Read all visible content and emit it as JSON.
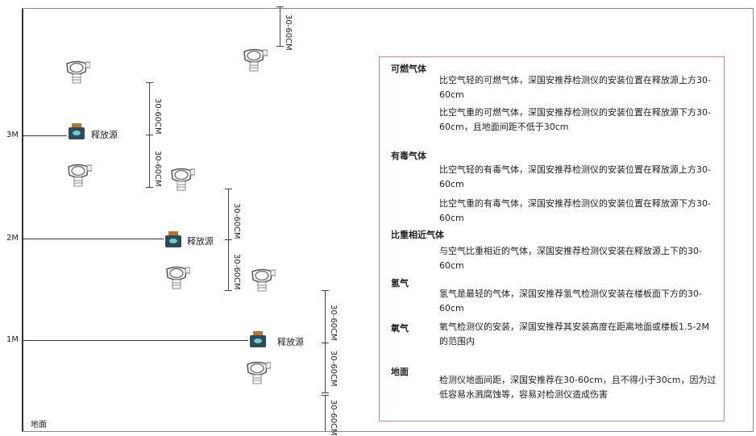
{
  "levels": [
    "3M",
    "2M",
    "1M"
  ],
  "ground_label": "地面",
  "source_label": "释放源",
  "dimension_label": "30-60CM",
  "panel": {
    "combustible": {
      "title": "可燃气体",
      "lighter": "比空气轻的可燃气体，深国安推荐检测仪的安装位置在释放源上方30-60cm",
      "heavier": "比空气重的可燃气体，深国安推荐检测仪的安装位置在释放源下方30-60cm，且地面间距不低于30cm"
    },
    "toxic": {
      "title": "有毒气体",
      "lighter": "比空气轻的有毒气体，深国安推荐检测仪的安装位置在释放源上方30-60cm",
      "heavier": "比空气重的有毒气体，深国安推荐检测仪的安装位置在释放源下方30-60cm"
    },
    "similar": {
      "title": "比重相近气体",
      "text": "与空气比重相近的气体，深国安推荐检测仪安装在释放源上下的30-60cm"
    },
    "hydrogen": {
      "title": "氢气",
      "text": "氢气是最轻的气体，深国安推荐氢气检测仪安装在楼板面下方的30-60cm"
    },
    "oxygen": {
      "title": "氧气",
      "text": "氧气检测仪的安装，深国安推荐其安装高度在距离地面或楼板1.5-2M的范围内"
    },
    "ground": {
      "title": "地面",
      "text": "检测仪地面间距，深国安推荐在30-60cm，且不得小于30cm，因为过低容易水溅腐蚀等，容易对检测仪造成伤害"
    }
  },
  "colors": {
    "border": "#e87c84",
    "source_body": "#2f4a5a",
    "source_cap": "#b8742a"
  }
}
